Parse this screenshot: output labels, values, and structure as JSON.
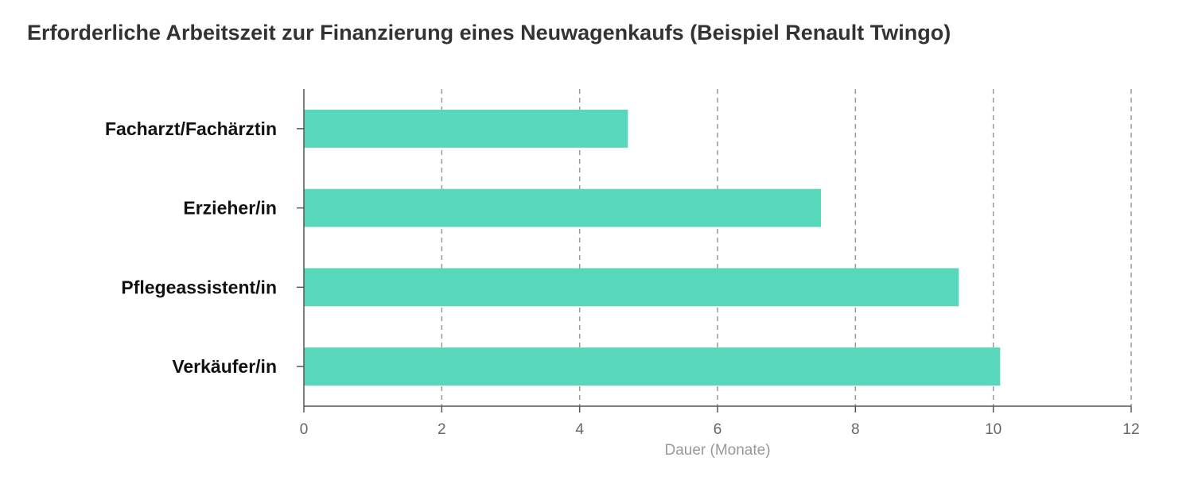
{
  "chart_data": {
    "type": "bar",
    "orientation": "horizontal",
    "title": "Erforderliche Arbeitszeit zur Finanzierung eines Neuwagenkaufs (Beispiel Renault Twingo)",
    "xlabel": "Dauer (Monate)",
    "ylabel": "",
    "categories": [
      "Facharzt/Fachärztin",
      "Erzieher/in",
      "Pflegeassistent/in",
      "Verkäufer/in"
    ],
    "values": [
      4.7,
      7.5,
      9.5,
      10.1
    ],
    "xlim": [
      0,
      12
    ],
    "xticks": [
      0,
      2,
      4,
      6,
      8,
      10,
      12
    ],
    "grid": "vertical-dashed",
    "legend": "none",
    "bar_color": "#58d8ba",
    "axis_color": "#555555",
    "grid_color": "#999999"
  }
}
